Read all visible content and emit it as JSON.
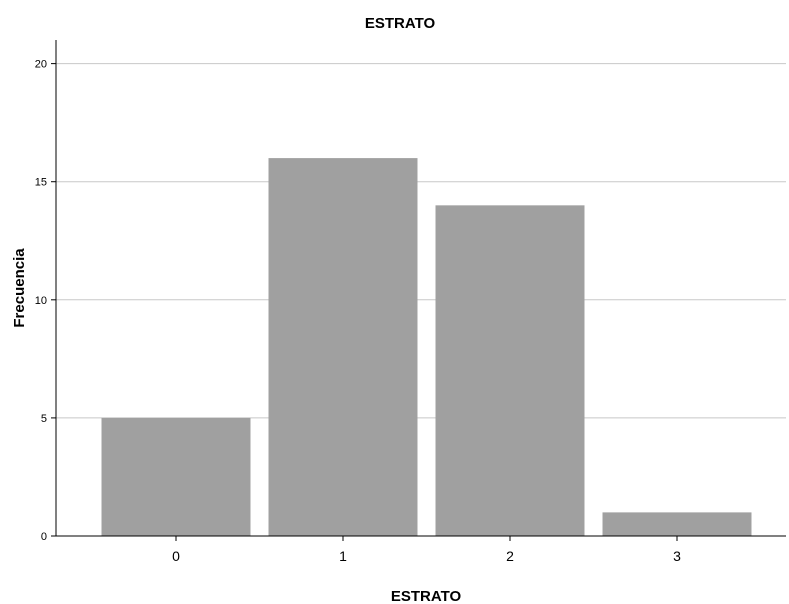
{
  "chart_data": {
    "type": "bar",
    "title": "ESTRATO",
    "xlabel": "ESTRATO",
    "ylabel": "Frecuencia",
    "categories": [
      "0",
      "1",
      "2",
      "3"
    ],
    "values": [
      5,
      16,
      14,
      1
    ],
    "ylim": [
      0,
      21
    ],
    "yticks": [
      "0",
      "5",
      "10",
      "15",
      "20"
    ],
    "grid": true,
    "bar_color": "#a0a0a0",
    "grid_color": "#c8c8c8"
  }
}
